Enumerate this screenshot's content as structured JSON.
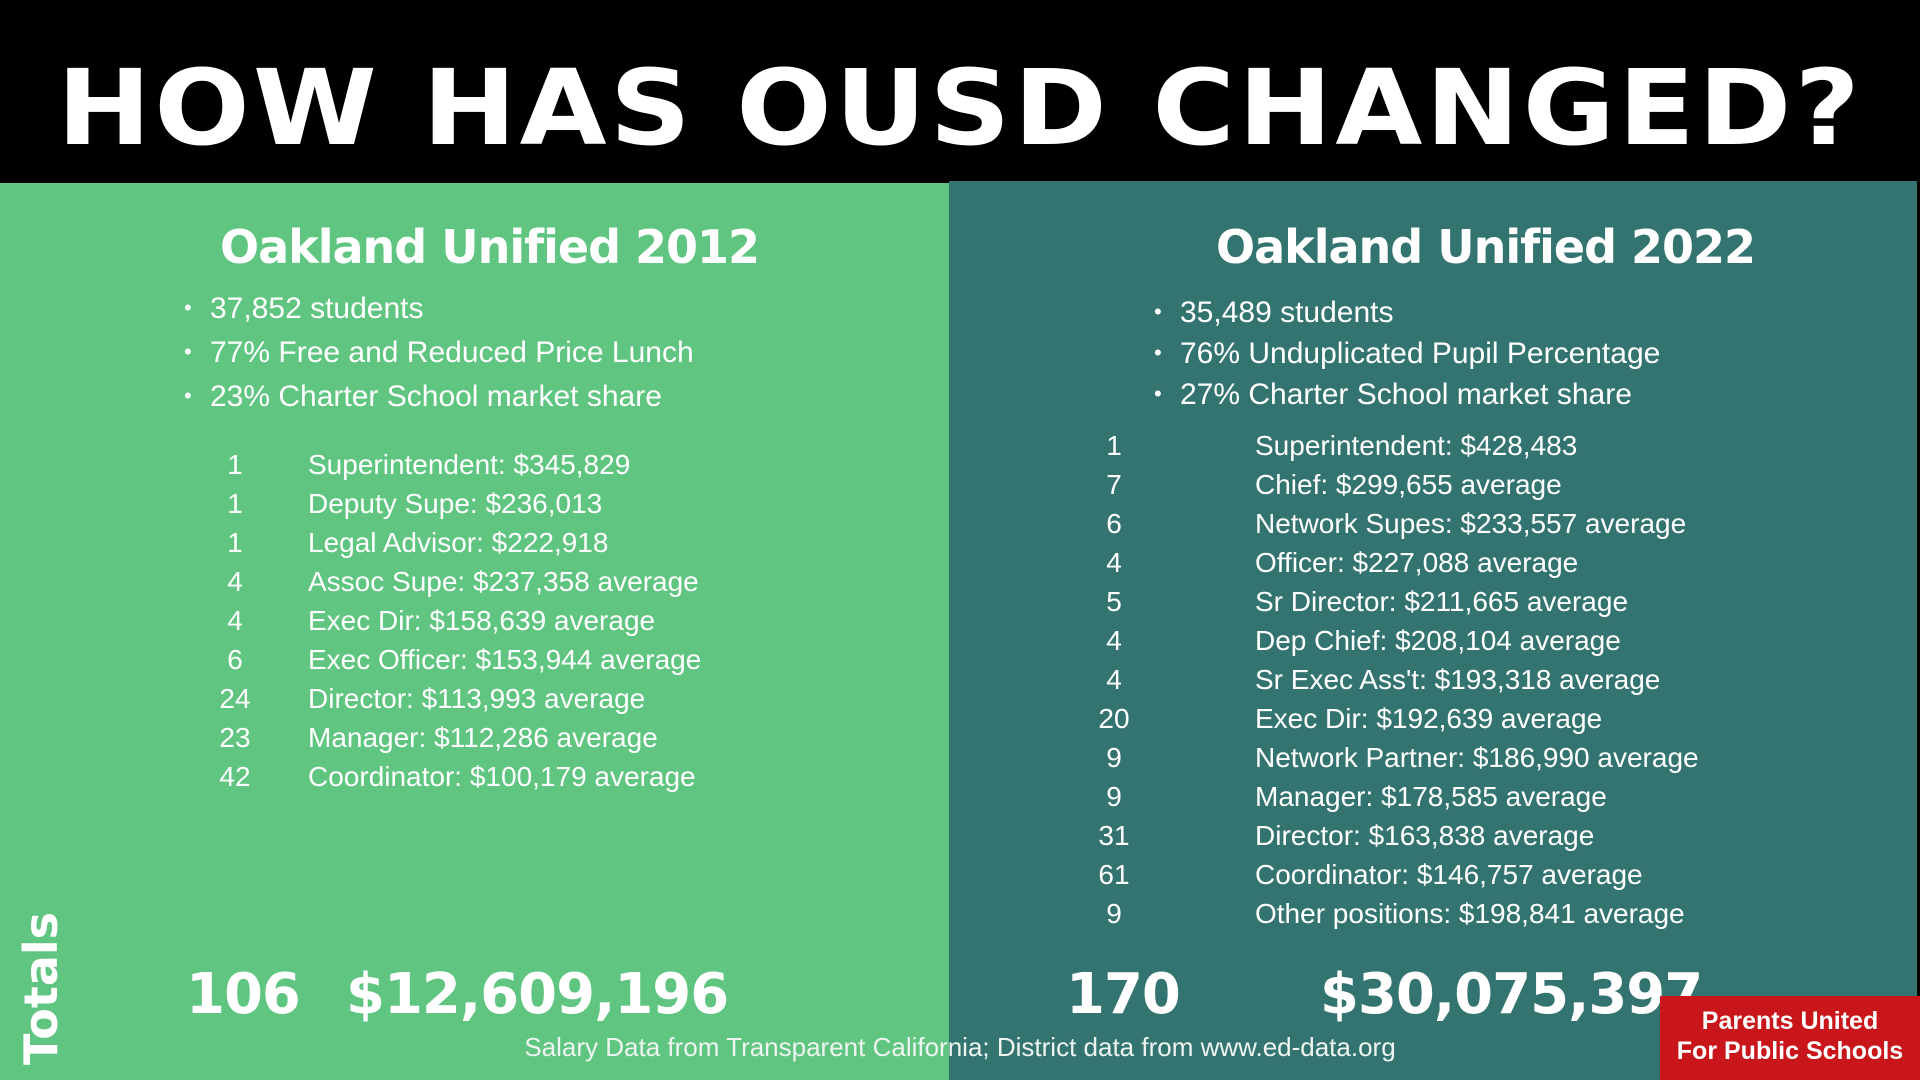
{
  "title": "HOW HAS OUSD CHANGED?",
  "left": {
    "heading": "Oakland Unified 2012",
    "facts": [
      "37,852 students",
      "77% Free and Reduced Price Lunch",
      "23% Charter School market share"
    ],
    "roster": [
      {
        "count": "1",
        "role": "Superintendent: $345,829"
      },
      {
        "count": "1",
        "role": "Deputy Supe: $236,013"
      },
      {
        "count": "1",
        "role": "Legal Advisor: $222,918"
      },
      {
        "count": "4",
        "role": "Assoc Supe: $237,358 average"
      },
      {
        "count": "4",
        "role": "Exec Dir: $158,639 average"
      },
      {
        "count": "6",
        "role": "Exec Officer: $153,944 average"
      },
      {
        "count": "24",
        "role": "Director: $113,993 average"
      },
      {
        "count": "23",
        "role": "Manager: $112,286 average"
      },
      {
        "count": "42",
        "role": "Coordinator: $100,179 average"
      }
    ],
    "total_count": "106",
    "total_amount": "$12,609,196"
  },
  "right": {
    "heading": "Oakland Unified 2022",
    "facts": [
      "35,489 students",
      "76% Unduplicated Pupil Percentage",
      "27% Charter School market share"
    ],
    "roster": [
      {
        "count": "1",
        "role": "Superintendent: $428,483"
      },
      {
        "count": "7",
        "role": "Chief: $299,655 average"
      },
      {
        "count": "6",
        "role": "Network Supes: $233,557 average"
      },
      {
        "count": "4",
        "role": "Officer: $227,088 average"
      },
      {
        "count": "5",
        "role": "Sr Director: $211,665 average"
      },
      {
        "count": "4",
        "role": "Dep Chief: $208,104 average"
      },
      {
        "count": "4",
        "role": "Sr Exec Ass't: $193,318 average"
      },
      {
        "count": "20",
        "role": "Exec Dir: $192,639 average"
      },
      {
        "count": "9",
        "role": "Network Partner: $186,990 average"
      },
      {
        "count": "9",
        "role": "Manager: $178,585 average"
      },
      {
        "count": "31",
        "role": "Director: $163,838 average"
      },
      {
        "count": "61",
        "role": "Coordinator: $146,757 average"
      },
      {
        "count": "9",
        "role": "Other positions: $198,841 average"
      }
    ],
    "total_count": "170",
    "total_amount": "$30,075,397"
  },
  "totals_label": "Totals",
  "source": "Salary Data from Transparent California; District data from www.ed-data.org",
  "logo": {
    "line1": "Parents United",
    "line2": "For Public Schools"
  },
  "colors": {
    "left_panel": "#5fc580",
    "right_panel": "#347470",
    "header": "#000000",
    "logo": "#c8161b"
  }
}
